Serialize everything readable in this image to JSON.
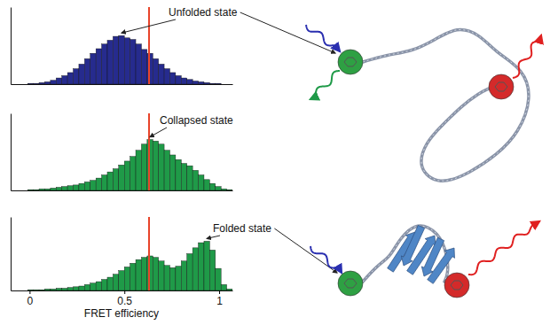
{
  "chart_data": [
    {
      "type": "histogram",
      "annotation": "Unfolded state",
      "color": "#262b8e",
      "bins": [
        -0.1,
        -0.07,
        -0.04,
        -0.01,
        0.02,
        0.05,
        0.08,
        0.11,
        0.14,
        0.17,
        0.2,
        0.23,
        0.26,
        0.29,
        0.32,
        0.35,
        0.38,
        0.41,
        0.44,
        0.47,
        0.5,
        0.53,
        0.56,
        0.59,
        0.62,
        0.65,
        0.68,
        0.71,
        0.74,
        0.77,
        0.8,
        0.83,
        0.86,
        0.89,
        0.92,
        0.95,
        0.98,
        1.01,
        1.04,
        1.07
      ],
      "values": [
        0,
        0,
        0,
        1,
        1,
        2,
        3,
        5,
        8,
        11,
        15,
        20,
        26,
        33,
        40,
        46,
        52,
        57,
        62,
        63,
        60,
        58,
        52,
        45,
        40,
        33,
        26,
        20,
        15,
        11,
        8,
        6,
        4,
        3,
        2,
        1,
        1,
        0,
        0
      ],
      "xlim": [
        -0.1,
        1.07
      ],
      "ylim": [
        0,
        100
      ],
      "vline": 0.63,
      "tick_labels": false
    },
    {
      "type": "histogram",
      "annotation": "Collapsed state",
      "color": "#1f9a48",
      "bins": [
        -0.1,
        -0.07,
        -0.04,
        -0.01,
        0.02,
        0.05,
        0.08,
        0.11,
        0.14,
        0.17,
        0.2,
        0.23,
        0.26,
        0.29,
        0.32,
        0.35,
        0.38,
        0.41,
        0.44,
        0.47,
        0.5,
        0.53,
        0.56,
        0.59,
        0.62,
        0.65,
        0.68,
        0.71,
        0.74,
        0.77,
        0.8,
        0.83,
        0.86,
        0.89,
        0.92,
        0.95,
        0.98,
        1.01,
        1.04,
        1.07
      ],
      "values": [
        0,
        0,
        0,
        1,
        1,
        2,
        2,
        3,
        4,
        5,
        6,
        7,
        9,
        11,
        13,
        16,
        20,
        24,
        28,
        33,
        38,
        44,
        52,
        60,
        66,
        64,
        60,
        52,
        46,
        40,
        35,
        32,
        26,
        20,
        14,
        9,
        5,
        2,
        1
      ],
      "xlim": [
        -0.1,
        1.07
      ],
      "ylim": [
        0,
        100
      ],
      "vline": 0.63,
      "tick_labels": false
    },
    {
      "type": "histogram",
      "annotation": "Folded state",
      "color": "#1f9a48",
      "bins": [
        -0.1,
        -0.07,
        -0.04,
        -0.01,
        0.02,
        0.05,
        0.08,
        0.11,
        0.14,
        0.17,
        0.2,
        0.23,
        0.26,
        0.29,
        0.32,
        0.35,
        0.38,
        0.41,
        0.44,
        0.47,
        0.5,
        0.53,
        0.56,
        0.59,
        0.62,
        0.65,
        0.68,
        0.71,
        0.74,
        0.77,
        0.8,
        0.83,
        0.86,
        0.89,
        0.92,
        0.95,
        0.98,
        1.01,
        1.04,
        1.07
      ],
      "values": [
        0,
        0,
        0,
        1,
        1,
        1,
        2,
        2,
        3,
        3,
        4,
        5,
        6,
        8,
        10,
        12,
        15,
        18,
        22,
        27,
        32,
        37,
        42,
        45,
        47,
        45,
        40,
        34,
        31,
        33,
        40,
        50,
        58,
        65,
        67,
        55,
        30,
        8,
        2
      ],
      "xlim": [
        -0.1,
        1.07
      ],
      "ylim": [
        0,
        100
      ],
      "xticks": [
        0,
        0.5,
        1
      ],
      "x_label": "FRET efficiency",
      "vline": 0.63,
      "tick_labels": "x"
    }
  ]
}
